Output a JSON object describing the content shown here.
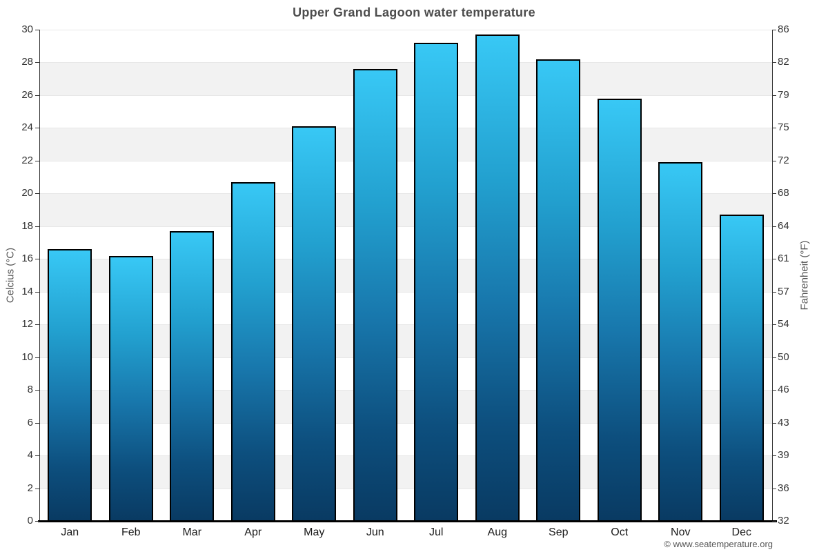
{
  "watermark": "© www.seatemperature.org",
  "chart_data": {
    "type": "bar",
    "title": "Upper Grand Lagoon water temperature",
    "ylabel_left": "Celcius (°C)",
    "ylabel_right": "Fahrenheit (°F)",
    "xlabel": "",
    "categories": [
      "Jan",
      "Feb",
      "Mar",
      "Apr",
      "May",
      "Jun",
      "Jul",
      "Aug",
      "Sep",
      "Oct",
      "Nov",
      "Dec"
    ],
    "values_celsius": [
      16.6,
      16.2,
      17.7,
      20.7,
      24.1,
      27.6,
      29.2,
      29.7,
      28.2,
      25.8,
      21.9,
      18.7
    ],
    "ylim_celsius": [
      0,
      30
    ],
    "yticks_celsius": [
      30,
      28,
      26,
      24,
      22,
      20,
      18,
      16,
      14,
      12,
      10,
      8,
      6,
      4,
      2,
      0
    ],
    "yticks_fahrenheit": [
      86,
      82,
      79,
      75,
      72,
      68,
      64,
      61,
      57,
      54,
      50,
      46,
      43,
      39,
      36,
      32
    ],
    "legend": "none",
    "grid": "alternating-horizontal-bands",
    "colors": {
      "bar_gradient_top": "#38c8f5",
      "bar_gradient_mid": "#1877ac",
      "bar_gradient_bottom": "#093a62",
      "bar_border": "#000000",
      "band_light": "#ffffff",
      "band_dark": "#f2f2f2",
      "gridline": "#e7e7e7",
      "axis_line": "#333333",
      "baseline": "#000000",
      "title_color": "#4d4d4d",
      "tick_label_color": "#333333",
      "axis_title_color": "#555555",
      "watermark_color": "#555555"
    }
  }
}
